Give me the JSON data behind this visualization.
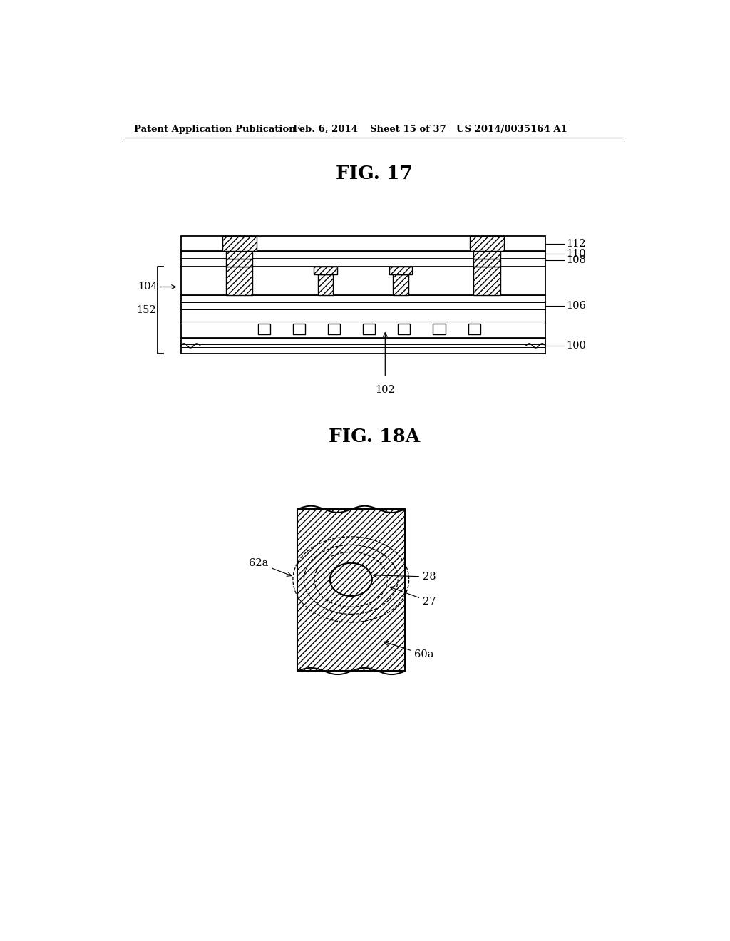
{
  "bg_color": "#ffffff",
  "header_text": "Patent Application Publication",
  "header_date": "Feb. 6, 2014",
  "header_sheet": "Sheet 15 of 37",
  "header_patent": "US 2014/0035164 A1",
  "fig17_title": "FIG. 17",
  "fig18a_title": "FIG. 18A"
}
